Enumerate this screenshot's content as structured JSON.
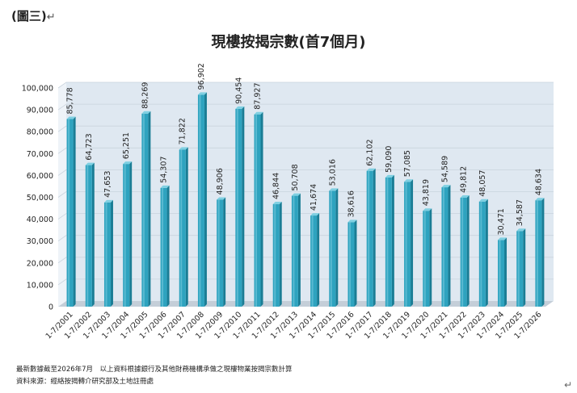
{
  "document": {
    "label": "(圖三)",
    "paragraph_mark": "↵"
  },
  "notes": {
    "line1": "最新數據截至2026年7月　以上資料根據銀行及其他財務機構承做之現樓物業按揭宗數計算",
    "line2": "資料來源：經絡按揭轉介研究部及土地註冊處"
  },
  "chart_data": {
    "type": "bar",
    "title": "現樓按揭宗數(首7個月)",
    "xlabel": "",
    "ylabel": "",
    "categories": [
      "1-7/2001",
      "1-7/2002",
      "1-7/2003",
      "1-7/2004",
      "1-7/2005",
      "1-7/2006",
      "1-7/2007",
      "1-7/2008",
      "1-7/2009",
      "1-7/2010",
      "1-7/2011",
      "1-7/2012",
      "1-7/2013",
      "1-7/2014",
      "1-7/2015",
      "1-7/2016",
      "1-7/2017",
      "1-7/2018",
      "1-7/2019",
      "1-7/2020",
      "1-7/2021",
      "1-7/2022",
      "1-7/2023",
      "1-7/2024",
      "1-7/2025",
      "1-7/2026"
    ],
    "values": [
      85778,
      64723,
      47653,
      65251,
      88269,
      54307,
      71822,
      96902,
      48906,
      90454,
      87927,
      46844,
      50708,
      41674,
      53016,
      38616,
      62102,
      59090,
      57085,
      43819,
      54589,
      49812,
      48057,
      30471,
      34587,
      48634
    ],
    "value_labels": [
      "85,778",
      "64,723",
      "47,653",
      "65,251",
      "88,269",
      "54,307",
      "71,822",
      "96,902",
      "48,906",
      "90,454",
      "87,927",
      "46,844",
      "50,708",
      "41,674",
      "53,016",
      "38,616",
      "62,102",
      "59,090",
      "57,085",
      "43,819",
      "54,589",
      "49,812",
      "48,057",
      "30,471",
      "34,587",
      "48,634"
    ],
    "y_ticks": [
      0,
      10000,
      20000,
      30000,
      40000,
      50000,
      60000,
      70000,
      80000,
      90000,
      100000
    ],
    "y_tick_labels": [
      "0",
      "10,000",
      "20,000",
      "30,000",
      "40,000",
      "50,000",
      "60,000",
      "70,000",
      "80,000",
      "90,000",
      "100,000"
    ],
    "ylim": [
      0,
      100000
    ],
    "grid": true,
    "legend": "none",
    "colors": {
      "bar_front": "#2ea3bf",
      "bar_side": "#1a7d95",
      "bar_top": "#7fd0e2",
      "plot_back": "#dfe8f1",
      "floor": "#c4ced8"
    }
  }
}
